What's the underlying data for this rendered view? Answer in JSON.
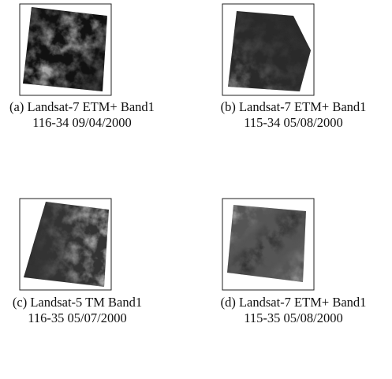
{
  "panels": [
    {
      "caption": "(a) Landsat-7 ETM+ Band1",
      "scene": "116-34 09/04/2000"
    },
    {
      "caption": "(b) Landsat-7 ETM+ Band1",
      "scene": "115-34 05/08/2000"
    },
    {
      "caption": "(c) Landsat-5 TM Band1",
      "scene": "116-35 05/07/2000"
    },
    {
      "caption": "(d) Landsat-7 ETM+ Band1",
      "scene": "115-35 05/08/2000"
    }
  ]
}
